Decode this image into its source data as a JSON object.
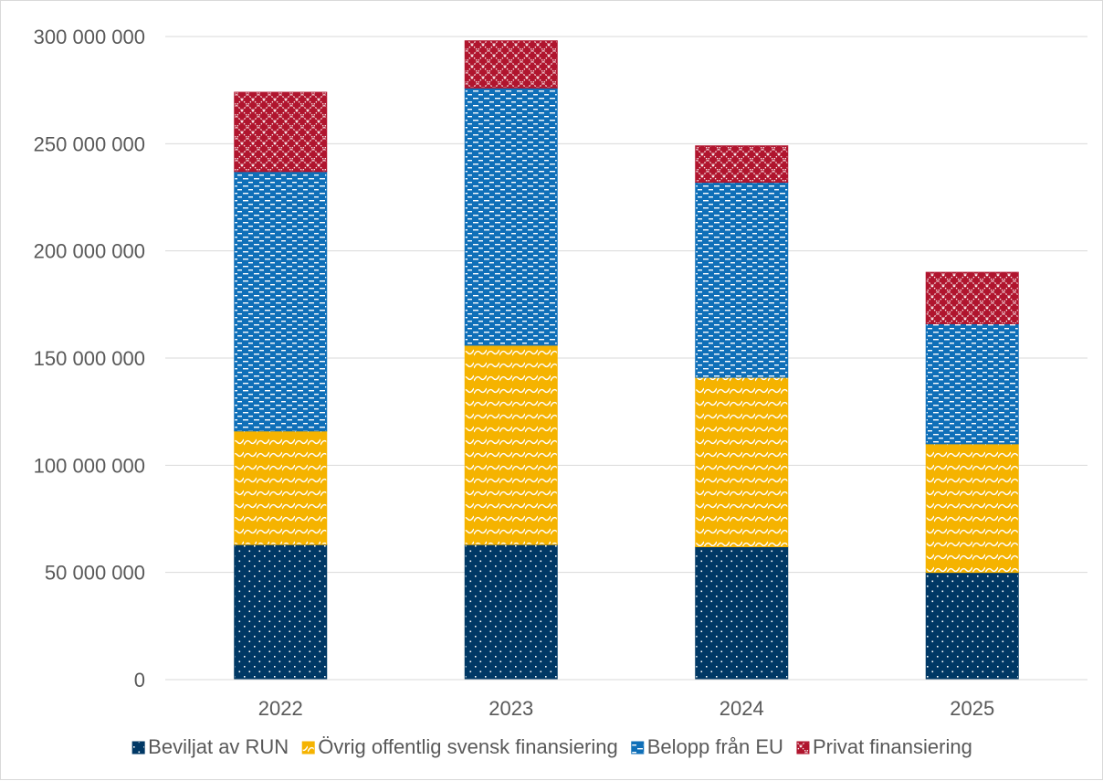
{
  "chart_data": {
    "type": "bar",
    "stacked": true,
    "categories": [
      "2022",
      "2023",
      "2024",
      "2025"
    ],
    "series": [
      {
        "name": "Beviljat av RUN",
        "values": [
          63000000,
          63000000,
          62000000,
          50000000
        ],
        "color": "#003865",
        "pattern": "dots"
      },
      {
        "name": "Övrig offentlig svensk finansiering",
        "values": [
          53000000,
          93000000,
          79000000,
          60000000
        ],
        "color": "#F5B300",
        "pattern": "waves"
      },
      {
        "name": "Belopp från EU",
        "values": [
          121000000,
          120000000,
          91000000,
          56000000
        ],
        "color": "#0F6FB8",
        "pattern": "dashes"
      },
      {
        "name": "Privat finansiering",
        "values": [
          37000000,
          22000000,
          17000000,
          24000000
        ],
        "color": "#B0152E",
        "pattern": "crosshatch"
      }
    ],
    "ylim": [
      0,
      300000000
    ],
    "yticks": [
      0,
      50000000,
      100000000,
      150000000,
      200000000,
      250000000,
      300000000
    ],
    "ytick_labels": [
      "0",
      "50 000 000",
      "100 000 000",
      "150 000 000",
      "200 000 000",
      "250 000 000",
      "300 000 000"
    ],
    "grid": true,
    "legend_position": "bottom",
    "title": "",
    "xlabel": "",
    "ylabel": ""
  }
}
